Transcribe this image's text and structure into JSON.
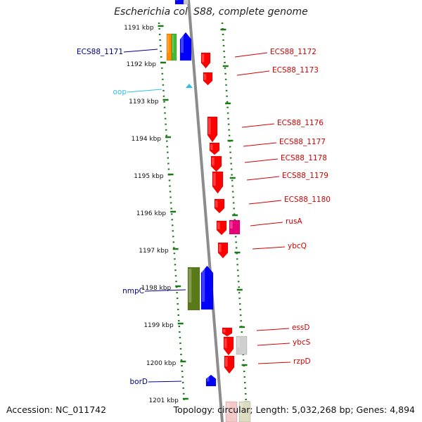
{
  "title": "Escherichia coli S88, complete genome",
  "footer": {
    "accession": "Accession: NC_011742",
    "topology": "Topology: circular; Length: 5,032,268 bp; Genes: 4,894"
  },
  "colors": {
    "backbone": "#8c8c8c",
    "ticks": "#1a7a1a",
    "gene_red": "#ff0000",
    "gene_blue": "#0000ff",
    "gene_magenta": "#e6007a",
    "gene_olive": "#5a7a1a",
    "gene_grey": "#cccccc",
    "label_blue": "#00008b",
    "label_red": "#d40000",
    "label_cyan": "#2ec0e8"
  },
  "ruler": [
    {
      "label": "1191 kbp"
    },
    {
      "label": "1192 kbp"
    },
    {
      "label": "1193 kbp"
    },
    {
      "label": "1194 kbp"
    },
    {
      "label": "1195 kbp"
    },
    {
      "label": "1196 kbp"
    },
    {
      "label": "1197 kbp"
    },
    {
      "label": "1198 kbp"
    },
    {
      "label": "1199 kbp"
    },
    {
      "label": "1200 kbp"
    },
    {
      "label": "1201 kbp"
    }
  ],
  "left_labels": [
    {
      "text": "ECS88_1171",
      "color": "#00008b"
    },
    {
      "text": "oop",
      "color": "#2ec0e8"
    },
    {
      "text": "nmpC",
      "color": "#00008b"
    },
    {
      "text": "borD",
      "color": "#00008b"
    }
  ],
  "right_labels": [
    {
      "text": "ECS88_1172"
    },
    {
      "text": "ECS88_1173"
    },
    {
      "text": "ECS88_1176"
    },
    {
      "text": "ECS88_1177"
    },
    {
      "text": "ECS88_1178"
    },
    {
      "text": "ECS88_1179"
    },
    {
      "text": "ECS88_1180"
    },
    {
      "text": "rusA"
    },
    {
      "text": "ybcQ"
    },
    {
      "text": "essD"
    },
    {
      "text": "ybcS"
    },
    {
      "text": "rzpD"
    }
  ]
}
